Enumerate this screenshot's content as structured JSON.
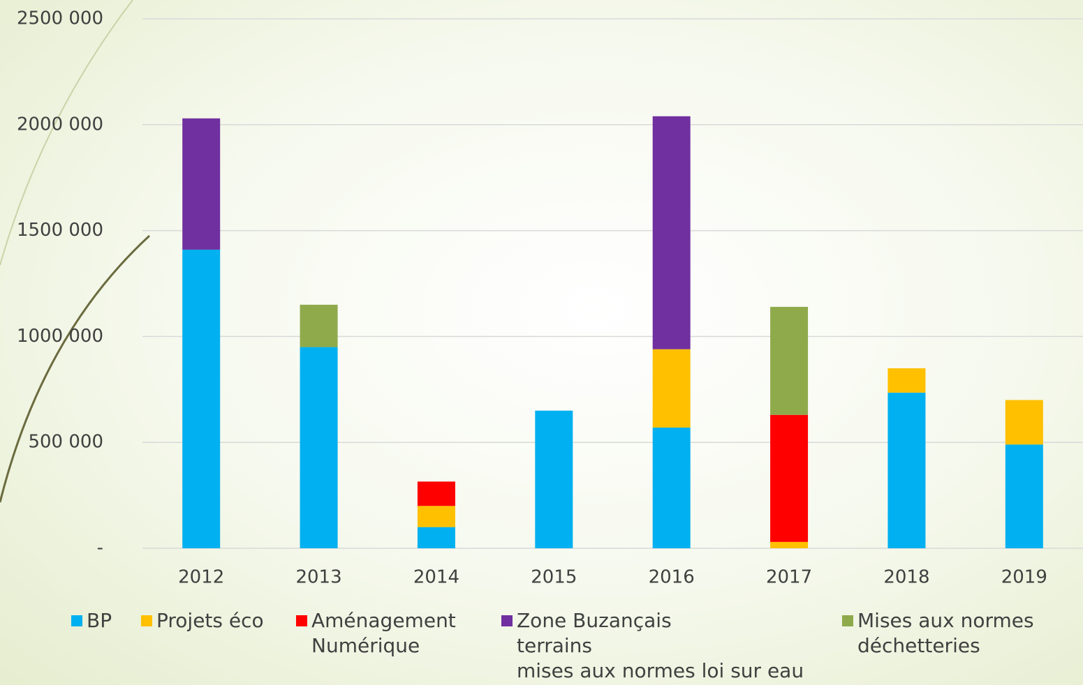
{
  "chart_data": {
    "type": "stacked_bar",
    "categories": [
      "2012",
      "2013",
      "2014",
      "2015",
      "2016",
      "2017",
      "2018",
      "2019"
    ],
    "series": [
      {
        "name": "BP",
        "color": "#00b0f0",
        "values": [
          1410000,
          950000,
          100000,
          650000,
          570000,
          null,
          735000,
          490000
        ]
      },
      {
        "name": "Projets éco",
        "color": "#ffc000",
        "values": [
          null,
          null,
          100000,
          null,
          370000,
          30000,
          115000,
          210000
        ]
      },
      {
        "name": "Aménagement\nNumérique",
        "color": "#ff0000",
        "values": [
          null,
          null,
          115000,
          null,
          null,
          600000,
          null,
          null
        ]
      },
      {
        "name": "Zone Buzançais\nterrains\nmises aux normes loi sur eau",
        "color": "#7030a0",
        "values": [
          620000,
          null,
          null,
          null,
          1100000,
          null,
          null,
          null
        ]
      },
      {
        "name": "Mises aux normes\ndéchetteries",
        "color": "#8faa4b",
        "values": [
          null,
          200000,
          null,
          null,
          null,
          510000,
          null,
          null
        ]
      }
    ],
    "ylim": [
      0,
      2500000
    ],
    "yticks": [
      {
        "value": 0,
        "label": "-"
      },
      {
        "value": 500000,
        "label": "500 000"
      },
      {
        "value": 1000000,
        "label": "1000 000"
      },
      {
        "value": 1500000,
        "label": "1500 000"
      },
      {
        "value": 2000000,
        "label": "2000 000"
      },
      {
        "value": 2500000,
        "label": "2500 000"
      }
    ],
    "grid": true,
    "legend": "bottom"
  }
}
